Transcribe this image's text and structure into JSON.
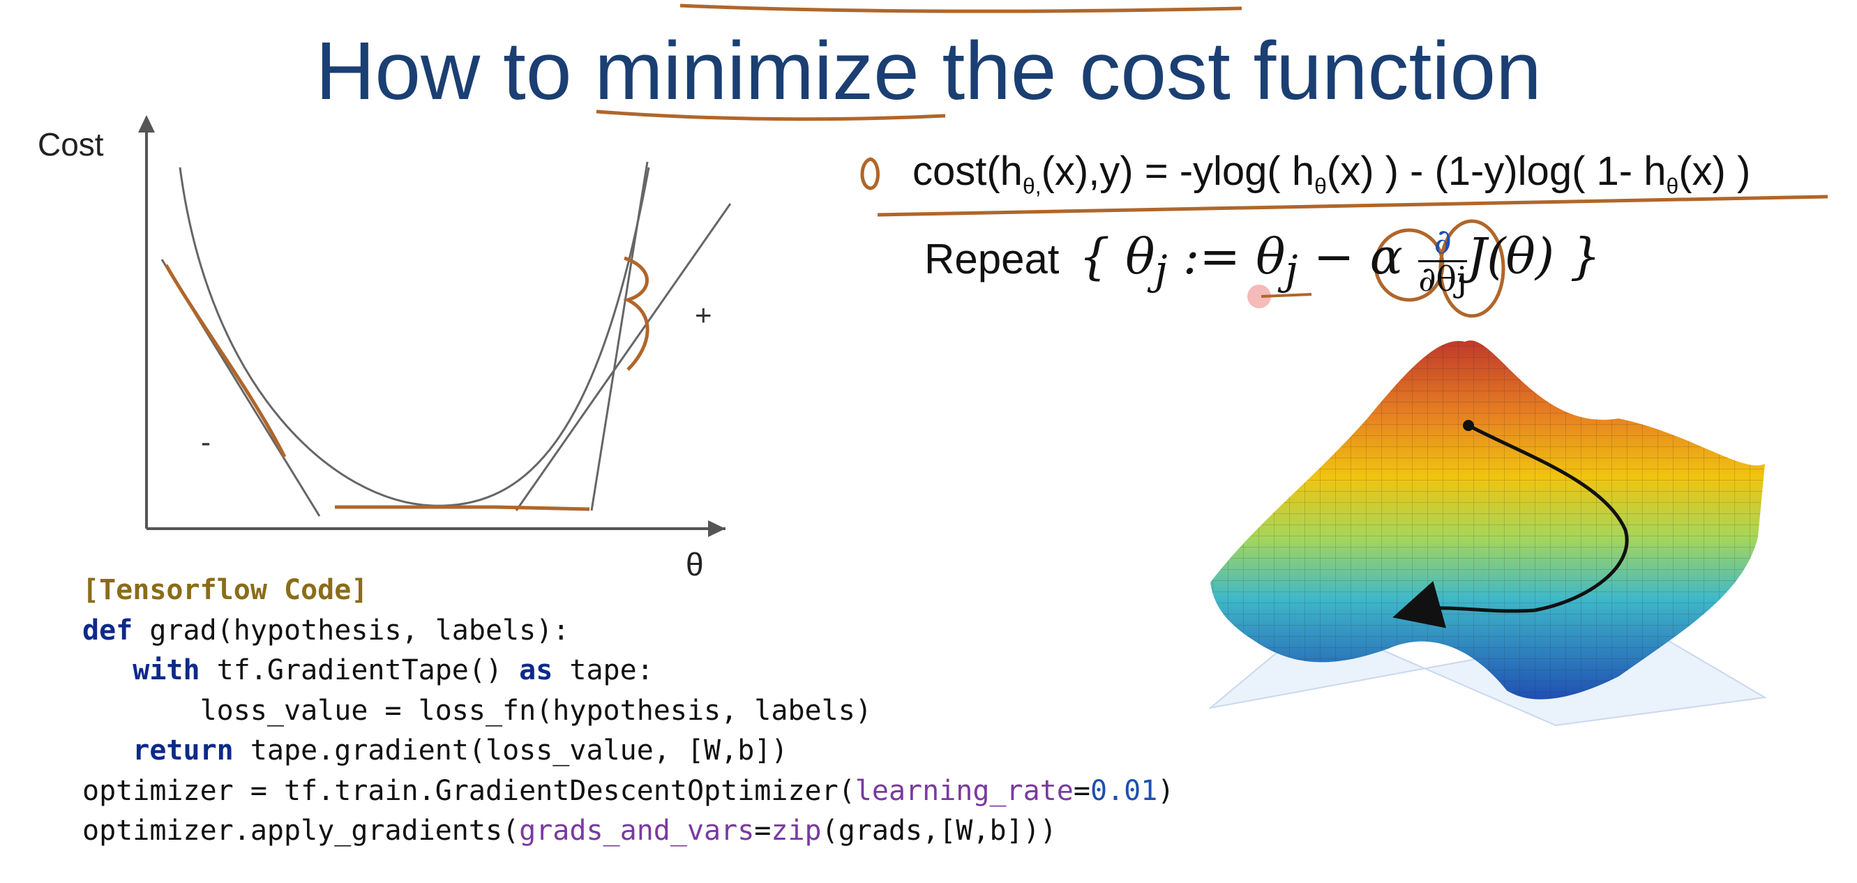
{
  "slide": {
    "title": "How to minimize the cost function"
  },
  "graph": {
    "y_label": "Cost",
    "x_label": "θ",
    "negative_slope_mark": "-",
    "positive_slope_mark": "+"
  },
  "formulas": {
    "cost_prefix": "cost(h",
    "cost_sub1": "θ,",
    "cost_mid": "(x),y) = -ylog( h",
    "cost_sub2": "θ",
    "cost_mid2": "(x) ) - (1-y)log( 1- h",
    "cost_sub3": "θ",
    "cost_suffix": "(x) )",
    "repeat_word": "Repeat",
    "repeat_lhs": "{ θ",
    "repeat_lhs_sub": "j",
    "repeat_assign": " := θ",
    "repeat_rhs_sub": "j",
    "repeat_minus_alpha": " − α",
    "partial_num": "∂",
    "partial_den": "∂θj",
    "repeat_tail": "J(θ) }"
  },
  "code": {
    "header": "[Tensorflow Code]",
    "line1_kw": "def",
    "line1_rest": " grad(hypothesis, labels):",
    "line2_kw": "with",
    "line2_mid": " tf.GradientTape() ",
    "line2_kw2": "as",
    "line2_rest": " tape:",
    "line3": "loss_value = loss_fn(hypothesis, labels)",
    "line4_kw": "return",
    "line4_rest": " tape.gradient(loss_value, [W,b])",
    "line5_pre": "optimizer = tf.train.GradientDescentOptimizer(",
    "line5_kwarg": "learning_rate",
    "line5_eq": "=",
    "line5_num": "0.01",
    "line5_post": ")",
    "line6_pre": "optimizer.apply_gradients(",
    "line6_kwarg": "grads_and_vars",
    "line6_eq": "=",
    "line6_zip": "zip",
    "line6_post": "(grads,[W,b]))"
  },
  "colors": {
    "title": "#1b3f73",
    "annotation": "#b0662a",
    "keyword": "#0c2a8a",
    "code_header": "#8a6d1a"
  }
}
